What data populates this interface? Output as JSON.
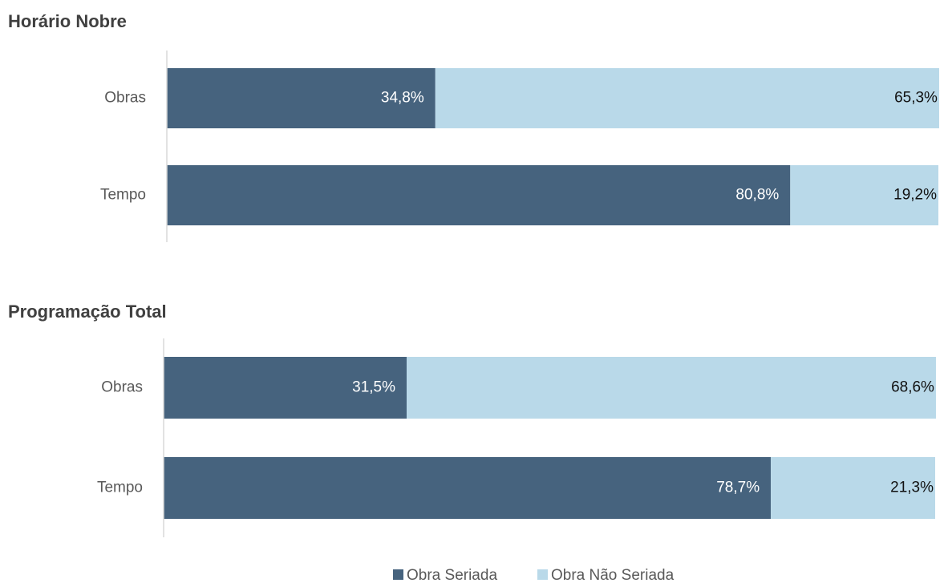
{
  "chart_data": [
    {
      "type": "bar",
      "orientation": "horizontal",
      "stacked": true,
      "title": "Horário Nobre",
      "categories": [
        "Obras",
        "Tempo"
      ],
      "xlim": [
        0,
        100
      ],
      "series": [
        {
          "name": "Obra Seriada",
          "color": "#46637e",
          "values": [
            34.8,
            80.8
          ],
          "value_labels": [
            "34,8%",
            "80,8%"
          ]
        },
        {
          "name": "Obra Não Seriada",
          "color": "#b9d9e9",
          "values": [
            65.3,
            19.2
          ],
          "value_labels": [
            "65,3%",
            "19,2%"
          ]
        }
      ]
    },
    {
      "type": "bar",
      "orientation": "horizontal",
      "stacked": true,
      "title": "Programação Total",
      "categories": [
        "Obras",
        "Tempo"
      ],
      "xlim": [
        0,
        100
      ],
      "legend": "bottom",
      "series": [
        {
          "name": "Obra Seriada",
          "color": "#46637e",
          "values": [
            31.5,
            78.7
          ],
          "value_labels": [
            "31,5%",
            "78,7%"
          ]
        },
        {
          "name": "Obra Não Seriada",
          "color": "#b9d9e9",
          "values": [
            68.6,
            21.3
          ],
          "value_labels": [
            "68,6%",
            "21,3%"
          ]
        }
      ]
    }
  ]
}
